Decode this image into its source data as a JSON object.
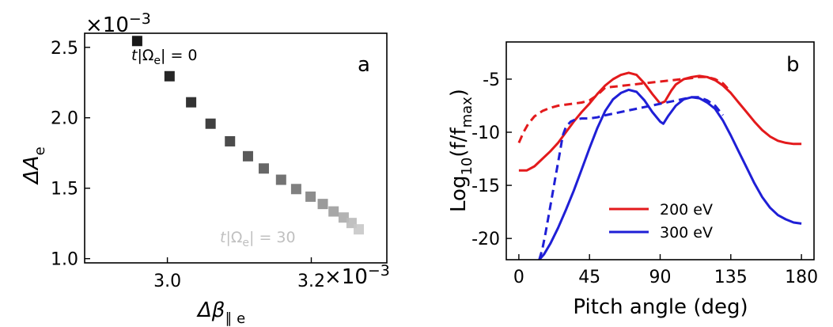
{
  "chart_data": [
    {
      "panel_label": "a",
      "type": "scatter",
      "xlabel": "Δβ",
      "xlabel_sub": "∥ e",
      "ylabel": "ΔA",
      "ylabel_sub": "e",
      "x_multiplier": "×10",
      "x_multiplier_exp": "−3",
      "y_multiplier": "×10",
      "y_multiplier_exp": "−3",
      "xlim": [
        2.885,
        3.305
      ],
      "ylim": [
        0.97,
        2.6
      ],
      "xticks": [
        3.0,
        3.2
      ],
      "xtick_labels": [
        "3.0",
        "3.2"
      ],
      "yticks": [
        1.0,
        1.5,
        2.0,
        2.5
      ],
      "ytick_labels": [
        "1.0",
        "1.5",
        "2.0",
        "2.5"
      ],
      "annotation_start": {
        "t": "t",
        "mid": "|Ω",
        "sub": "e",
        "rest": "| = 0"
      },
      "annotation_end": {
        "t": "t",
        "mid": "|Ω",
        "sub": "e",
        "rest": "| = 30"
      },
      "points": [
        {
          "x": 2.958,
          "y": 2.545
        },
        {
          "x": 3.003,
          "y": 2.295
        },
        {
          "x": 3.033,
          "y": 2.11
        },
        {
          "x": 3.06,
          "y": 1.958
        },
        {
          "x": 3.087,
          "y": 1.833
        },
        {
          "x": 3.112,
          "y": 1.727
        },
        {
          "x": 3.134,
          "y": 1.64
        },
        {
          "x": 3.158,
          "y": 1.56
        },
        {
          "x": 3.179,
          "y": 1.494
        },
        {
          "x": 3.199,
          "y": 1.44
        },
        {
          "x": 3.216,
          "y": 1.388
        },
        {
          "x": 3.231,
          "y": 1.335
        },
        {
          "x": 3.245,
          "y": 1.292
        },
        {
          "x": 3.256,
          "y": 1.253
        },
        {
          "x": 3.266,
          "y": 1.208
        }
      ],
      "colors": {
        "start": "#000000",
        "end": "#c8c8c8"
      }
    },
    {
      "panel_label": "b",
      "type": "line",
      "xlabel": "Pitch angle (deg)",
      "ylabel": "Log",
      "ylabel_sub": "10",
      "ylabel_rest": "(f/f",
      "ylabel_sub2": "max",
      "ylabel_close": ")",
      "xlim": [
        -8,
        188
      ],
      "ylim": [
        -22,
        -1.5
      ],
      "xticks": [
        0,
        45,
        90,
        135,
        180
      ],
      "xtick_labels": [
        "0",
        "45",
        "90",
        "135",
        "180"
      ],
      "yticks": [
        -5,
        -10,
        -15,
        -20
      ],
      "ytick_labels": [
        "-5",
        "-10",
        "-15",
        "-20"
      ],
      "legend_position": "lower-center",
      "series": [
        {
          "name": "200 eV",
          "color": "#e31a1c",
          "style": "solid",
          "x": [
            0,
            5,
            10,
            15,
            20,
            25,
            30,
            35,
            40,
            45,
            50,
            55,
            60,
            65,
            70,
            75,
            80,
            85,
            90,
            93,
            97,
            100,
            105,
            110,
            115,
            120,
            125,
            130,
            135,
            140,
            145,
            150,
            155,
            160,
            165,
            170,
            175,
            180
          ],
          "y": [
            -13.6,
            -13.6,
            -13.2,
            -12.5,
            -11.8,
            -11.0,
            -10.0,
            -9.0,
            -8.1,
            -7.3,
            -6.4,
            -5.6,
            -5.0,
            -4.6,
            -4.4,
            -4.6,
            -5.4,
            -6.4,
            -7.3,
            -7.1,
            -6.1,
            -5.5,
            -5.0,
            -4.8,
            -4.7,
            -4.8,
            -5.1,
            -5.6,
            -6.3,
            -7.2,
            -8.1,
            -9.0,
            -9.8,
            -10.4,
            -10.8,
            -11.0,
            -11.1,
            -11.1
          ]
        },
        {
          "name": "",
          "color": "#e31a1c",
          "style": "dashed",
          "x": [
            0,
            3,
            6,
            10,
            15,
            20,
            25,
            30,
            35,
            40,
            45,
            50,
            55,
            110,
            115,
            120,
            125,
            130,
            135
          ],
          "y": [
            -11.0,
            -10.0,
            -9.2,
            -8.5,
            -8.0,
            -7.7,
            -7.5,
            -7.4,
            -7.3,
            -7.2,
            -7.0,
            -6.5,
            -5.8,
            -4.9,
            -4.8,
            -4.8,
            -5.0,
            -5.4,
            -6.2
          ]
        },
        {
          "name": "300 eV",
          "color": "#1f1fd6",
          "style": "solid",
          "x": [
            13,
            16,
            20,
            25,
            30,
            35,
            40,
            45,
            50,
            55,
            60,
            65,
            70,
            75,
            80,
            85,
            90,
            92,
            95,
            100,
            105,
            110,
            115,
            120,
            125,
            130,
            135,
            140,
            145,
            150,
            155,
            160,
            165,
            170,
            175,
            180
          ],
          "y": [
            -22.0,
            -21.5,
            -20.5,
            -19.0,
            -17.3,
            -15.5,
            -13.5,
            -11.5,
            -9.6,
            -8.0,
            -6.9,
            -6.3,
            -6.0,
            -6.2,
            -7.0,
            -8.1,
            -9.0,
            -9.2,
            -8.5,
            -7.5,
            -6.9,
            -6.7,
            -6.8,
            -7.2,
            -7.8,
            -8.9,
            -10.3,
            -11.8,
            -13.3,
            -14.8,
            -16.1,
            -17.1,
            -17.8,
            -18.2,
            -18.5,
            -18.6
          ]
        },
        {
          "name": "",
          "color": "#1f1fd6",
          "style": "dashed",
          "x": [
            13,
            15,
            17,
            20,
            23,
            26,
            28,
            30,
            33,
            36,
            40,
            45,
            50,
            55,
            110,
            115,
            120,
            125,
            130
          ],
          "y": [
            -22.0,
            -21.0,
            -19.5,
            -17.0,
            -14.5,
            -12.0,
            -10.3,
            -9.5,
            -9.0,
            -8.8,
            -8.7,
            -8.7,
            -8.6,
            -8.4,
            -6.7,
            -6.7,
            -7.0,
            -7.5,
            -8.4
          ]
        }
      ]
    }
  ]
}
